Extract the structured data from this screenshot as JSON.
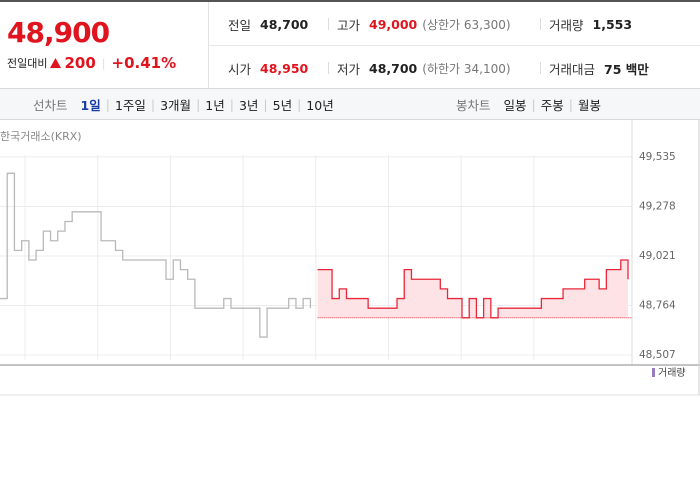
{
  "quote": {
    "price": "48,900",
    "change_label": "전일대비",
    "change": "200",
    "change_pct": "+0.41%"
  },
  "summary": [
    {
      "label": "전일",
      "value": "48,700"
    },
    {
      "label": "고가",
      "value": "49,000",
      "note": "(상한가 63,300)"
    },
    {
      "label": "거래량",
      "value": "1,553"
    },
    {
      "label": "시가",
      "value": "48,950"
    },
    {
      "label": "저가",
      "value": "48,700",
      "note": "(하한가 34,100)"
    },
    {
      "label": "거래대금",
      "value": "75 백만"
    }
  ],
  "tabs": {
    "line_label": "선차트",
    "line_items": [
      "1일",
      "1주일",
      "3개월",
      "1년",
      "3년",
      "5년",
      "10년"
    ],
    "candle_label": "봉차트",
    "candle_items": [
      "일봉",
      "주봉",
      "월봉"
    ]
  },
  "chart": {
    "type": "line",
    "source": "한국거래소(KRX)",
    "ylim": [
      48481,
      49545
    ],
    "yticks": [
      {
        "value": 49535,
        "label": "49,535"
      },
      {
        "value": 49278,
        "label": "49,278"
      },
      {
        "value": 49021,
        "label": "49,021"
      },
      {
        "value": 48764,
        "label": "48,764"
      },
      {
        "value": 48507,
        "label": "48,507"
      }
    ],
    "baseline": 48700,
    "series": [
      {
        "color": "#b9b9b9",
        "values": [
          48800,
          49450,
          49050,
          49100,
          49000,
          49050,
          49150,
          49100,
          49150,
          49200,
          49250,
          49250,
          49250,
          49250,
          49100,
          49100,
          49050,
          49000,
          49000,
          49000,
          49000,
          49000,
          49000,
          48900,
          49000,
          48950,
          48900,
          48750,
          48750,
          48750,
          48750,
          48800,
          48750,
          48750,
          48750,
          48750,
          48600,
          48750,
          48750,
          48750,
          48800,
          48750,
          48800,
          48750,
          null,
          null,
          null,
          null,
          null,
          null,
          null,
          null,
          null,
          null,
          null,
          null,
          null,
          null,
          null,
          null,
          null,
          null,
          null,
          null,
          null,
          null,
          null,
          null,
          null,
          null,
          null,
          null,
          null,
          null,
          null,
          null,
          null,
          null,
          null,
          null,
          null,
          null,
          null,
          null,
          null,
          null,
          null,
          null
        ]
      },
      {
        "color": "#e8283a",
        "fill": "#fde3e6",
        "values": [
          null,
          null,
          null,
          null,
          null,
          null,
          null,
          null,
          null,
          null,
          null,
          null,
          null,
          null,
          null,
          null,
          null,
          null,
          null,
          null,
          null,
          null,
          null,
          null,
          null,
          null,
          null,
          null,
          null,
          null,
          null,
          null,
          null,
          null,
          null,
          null,
          null,
          null,
          null,
          null,
          null,
          null,
          null,
          null,
          48950,
          48950,
          48800,
          48850,
          48800,
          48800,
          48800,
          48750,
          48750,
          48750,
          48750,
          48800,
          48950,
          48900,
          48900,
          48900,
          48900,
          48850,
          48800,
          48800,
          48700,
          48800,
          48700,
          48800,
          48700,
          48750,
          48750,
          48750,
          48750,
          48750,
          48750,
          48800,
          48800,
          48800,
          48850,
          48850,
          48850,
          48900,
          48900,
          48850,
          48950,
          48950,
          49000,
          48900
        ]
      }
    ],
    "volume_legend": "거래량",
    "volume_color": "#9a7bc0"
  }
}
